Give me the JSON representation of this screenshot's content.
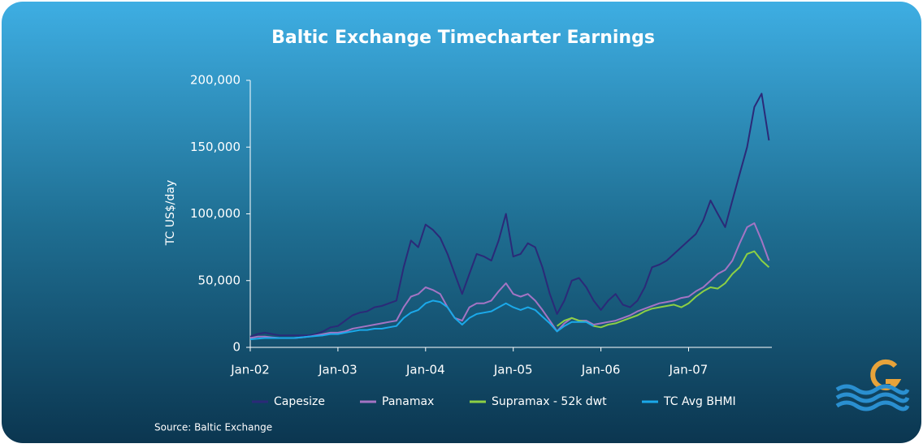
{
  "chart_data": {
    "type": "line",
    "title": "Baltic Exchange Timecharter Earnings",
    "y_label": "TC US$/day",
    "source": "Source: Baltic Exchange",
    "x": [
      2002,
      2002.083,
      2002.167,
      2002.25,
      2002.333,
      2002.417,
      2002.5,
      2002.583,
      2002.667,
      2002.75,
      2002.833,
      2002.917,
      2003,
      2003.083,
      2003.167,
      2003.25,
      2003.333,
      2003.417,
      2003.5,
      2003.583,
      2003.667,
      2003.75,
      2003.833,
      2003.917,
      2004,
      2004.083,
      2004.167,
      2004.25,
      2004.333,
      2004.417,
      2004.5,
      2004.583,
      2004.667,
      2004.75,
      2004.833,
      2004.917,
      2005,
      2005.083,
      2005.167,
      2005.25,
      2005.333,
      2005.417,
      2005.5,
      2005.583,
      2005.667,
      2005.75,
      2005.833,
      2005.917,
      2006,
      2006.083,
      2006.167,
      2006.25,
      2006.333,
      2006.417,
      2006.5,
      2006.583,
      2006.667,
      2006.75,
      2006.833,
      2006.917,
      2007,
      2007.083,
      2007.167,
      2007.25,
      2007.333,
      2007.417,
      2007.5,
      2007.583,
      2007.667,
      2007.75,
      2007.833,
      2007.917
    ],
    "series": [
      {
        "name": "Capesize",
        "color": "#2b2a78",
        "values": [
          8000,
          10000,
          11000,
          10000,
          9000,
          9000,
          9000,
          9000,
          9000,
          10000,
          12000,
          15000,
          16000,
          20000,
          24000,
          26000,
          27000,
          30000,
          31000,
          33000,
          35000,
          60000,
          80000,
          75000,
          92000,
          88000,
          82000,
          70000,
          55000,
          40000,
          55000,
          70000,
          68000,
          65000,
          80000,
          100000,
          68000,
          70000,
          78000,
          75000,
          60000,
          40000,
          25000,
          35000,
          50000,
          52000,
          45000,
          35000,
          28000,
          35000,
          40000,
          32000,
          30000,
          35000,
          45000,
          60000,
          62000,
          65000,
          70000,
          75000,
          80000,
          85000,
          95000,
          110000,
          100000,
          90000,
          110000,
          130000,
          150000,
          180000,
          190000,
          155000
        ]
      },
      {
        "name": "Panamax",
        "color": "#a474c4",
        "values": [
          7000,
          8000,
          8000,
          7500,
          7000,
          7000,
          7000,
          7500,
          8000,
          9000,
          10000,
          11000,
          11000,
          12000,
          14000,
          15000,
          16000,
          17000,
          18000,
          19000,
          20000,
          30000,
          38000,
          40000,
          45000,
          43000,
          40000,
          30000,
          22000,
          20000,
          30000,
          33000,
          33000,
          35000,
          42000,
          48000,
          40000,
          38000,
          40000,
          35000,
          28000,
          20000,
          12000,
          18000,
          22000,
          20000,
          20000,
          17000,
          18000,
          19000,
          20000,
          22000,
          24000,
          27000,
          29000,
          31000,
          33000,
          34000,
          35000,
          37000,
          38000,
          42000,
          45000,
          50000,
          55000,
          58000,
          65000,
          78000,
          90000,
          93000,
          80000,
          65000
        ]
      },
      {
        "name": "Supramax - 52k dwt",
        "color": "#8dd044",
        "values": [
          null,
          null,
          null,
          null,
          null,
          null,
          null,
          null,
          null,
          null,
          null,
          null,
          null,
          null,
          null,
          null,
          null,
          null,
          null,
          null,
          null,
          null,
          null,
          null,
          null,
          null,
          null,
          null,
          null,
          null,
          null,
          null,
          null,
          null,
          null,
          null,
          null,
          null,
          null,
          null,
          null,
          null,
          16000,
          20000,
          22000,
          20000,
          19000,
          16000,
          15000,
          17000,
          18000,
          20000,
          22000,
          24000,
          27000,
          29000,
          30000,
          31000,
          32000,
          30000,
          33000,
          38000,
          42000,
          45000,
          44000,
          48000,
          55000,
          60000,
          70000,
          72000,
          65000,
          60000
        ]
      },
      {
        "name": "TC Avg BHMI",
        "color": "#1ba9ea",
        "values": [
          6000,
          6500,
          7000,
          7000,
          7000,
          7000,
          7000,
          7500,
          8000,
          8500,
          9000,
          10000,
          10000,
          11000,
          12000,
          13000,
          13000,
          14000,
          14000,
          15000,
          16000,
          22000,
          26000,
          28000,
          33000,
          35000,
          34000,
          30000,
          22000,
          17000,
          22000,
          25000,
          26000,
          27000,
          30000,
          33000,
          30000,
          28000,
          30000,
          28000,
          23000,
          18000,
          12000,
          16000,
          19000,
          19000,
          19000,
          16000,
          null,
          null,
          null,
          null,
          null,
          null,
          null,
          null,
          null,
          null,
          null,
          null,
          null,
          null,
          null,
          null,
          null,
          null,
          null,
          null,
          null,
          null,
          null,
          null
        ]
      }
    ],
    "xlim": [
      2002,
      2007.95
    ],
    "xticks": [
      {
        "value": 2002,
        "label": "Jan-02"
      },
      {
        "value": 2003,
        "label": "Jan-03"
      },
      {
        "value": 2004,
        "label": "Jan-04"
      },
      {
        "value": 2005,
        "label": "Jan-05"
      },
      {
        "value": 2006,
        "label": "Jan-06"
      },
      {
        "value": 2007,
        "label": "Jan-07"
      }
    ],
    "ylim": [
      0,
      200000
    ],
    "yticks": [
      0,
      {
        "value": 50000,
        "label": "50,000"
      },
      {
        "value": 100000,
        "label": "100,000"
      },
      {
        "value": 150000,
        "label": "150,000"
      },
      {
        "value": 200000,
        "label": "200,000"
      }
    ],
    "grid": false,
    "legend": "bottom"
  }
}
